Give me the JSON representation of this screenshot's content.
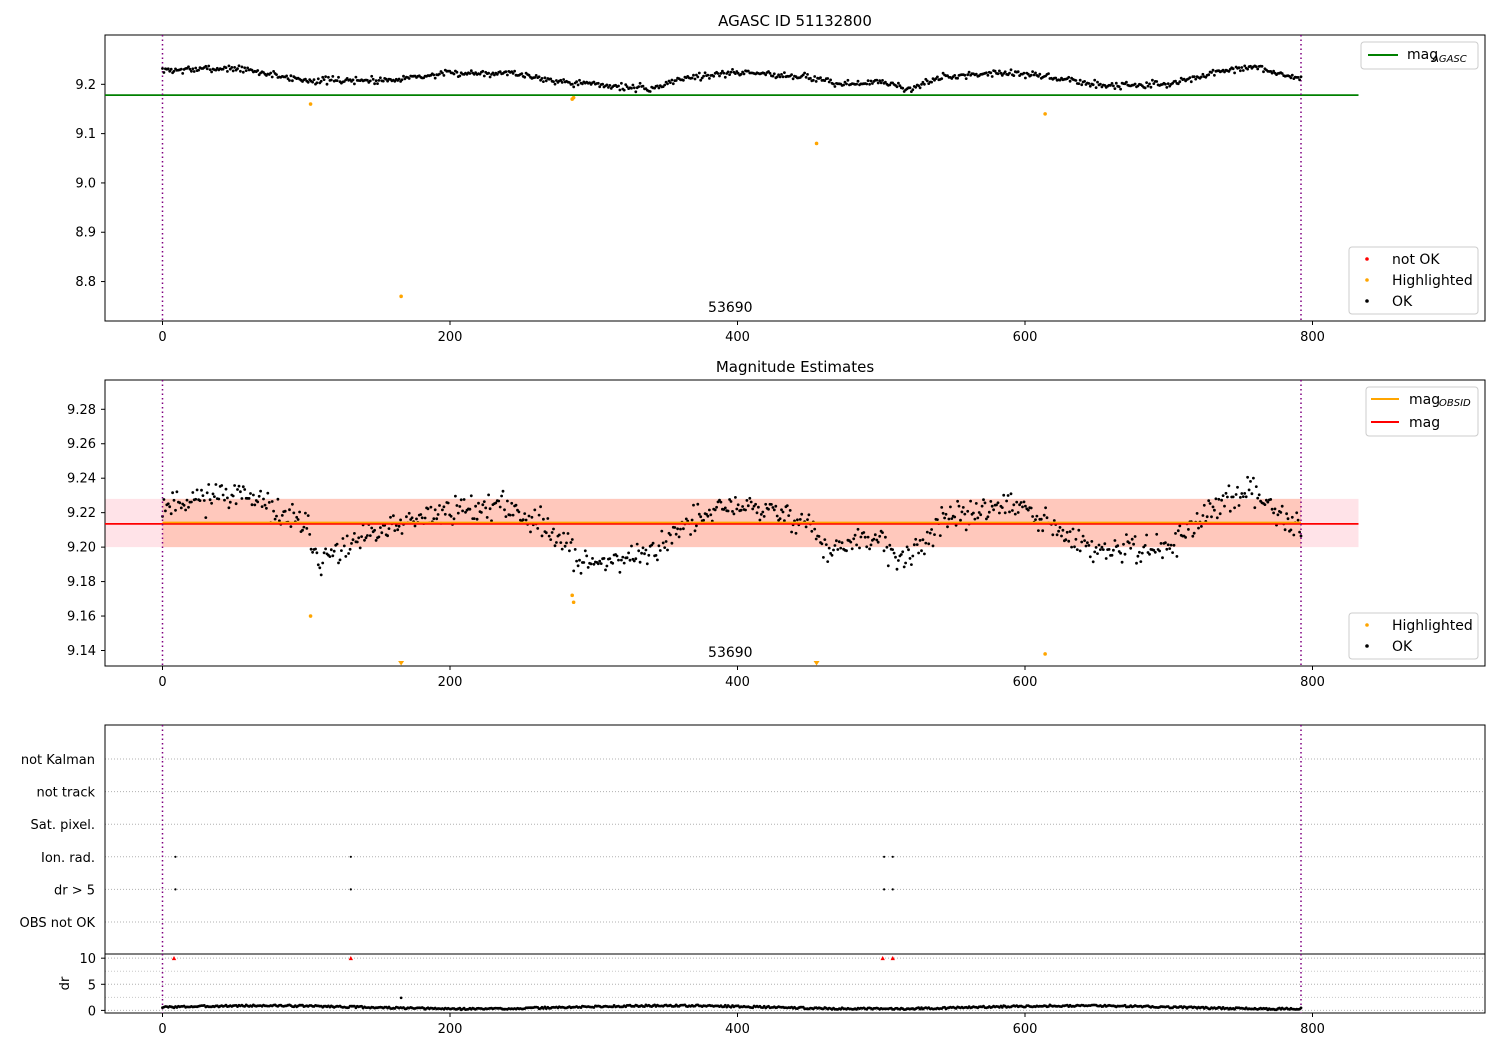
{
  "chart_data": [
    {
      "id": "top",
      "type": "scatter",
      "title": "AGASC ID 51132800",
      "xlim": [
        -40,
        920
      ],
      "ylim": [
        8.72,
        9.3
      ],
      "xticks": [
        0,
        200,
        400,
        600,
        800
      ],
      "yticks": [
        8.8,
        8.9,
        9.0,
        9.1,
        9.2
      ],
      "vlines": [
        0,
        792
      ],
      "hline": {
        "value": 9.178,
        "x_range": [
          -40,
          832
        ],
        "color": "#008000"
      },
      "annotation": {
        "text": "53690",
        "x": 395
      },
      "legend_lines": [
        {
          "label": "mag",
          "sub": "AGASC",
          "color": "#008000"
        }
      ],
      "legend_points": [
        {
          "label": "not OK",
          "color": "#ff0000"
        },
        {
          "label": "Highlighted",
          "color": "#ffa500"
        },
        {
          "label": "OK",
          "color": "#000000"
        }
      ],
      "highlighted": [
        [
          103,
          9.16
        ],
        [
          166,
          8.77
        ],
        [
          285,
          9.17
        ],
        [
          286,
          9.173
        ],
        [
          455,
          9.08
        ],
        [
          614,
          9.14
        ]
      ],
      "ok_profile": {
        "x_range": [
          0,
          792
        ],
        "n": 790,
        "knots": [
          [
            0,
            9.228
          ],
          [
            50,
            9.233
          ],
          [
            100,
            9.208
          ],
          [
            150,
            9.208
          ],
          [
            200,
            9.222
          ],
          [
            240,
            9.224
          ],
          [
            280,
            9.205
          ],
          [
            300,
            9.2
          ],
          [
            340,
            9.19
          ],
          [
            360,
            9.212
          ],
          [
            400,
            9.225
          ],
          [
            450,
            9.215
          ],
          [
            470,
            9.2
          ],
          [
            500,
            9.205
          ],
          [
            520,
            9.19
          ],
          [
            540,
            9.213
          ],
          [
            580,
            9.225
          ],
          [
            600,
            9.22
          ],
          [
            630,
            9.21
          ],
          [
            650,
            9.198
          ],
          [
            700,
            9.2
          ],
          [
            730,
            9.222
          ],
          [
            760,
            9.235
          ],
          [
            792,
            9.21
          ]
        ],
        "noise": 0.007,
        "seed": 7
      }
    },
    {
      "id": "mid",
      "type": "scatter",
      "title": "Magnitude Estimates",
      "xlim": [
        -40,
        920
      ],
      "ylim": [
        9.131,
        9.297
      ],
      "xticks": [
        0,
        200,
        400,
        600,
        800
      ],
      "yticks": [
        9.14,
        9.16,
        9.18,
        9.2,
        9.22,
        9.24,
        9.26,
        9.28
      ],
      "vlines": [
        0,
        792
      ],
      "band": {
        "lo": 9.2,
        "hi": 9.228,
        "x_range": [
          -40,
          832
        ]
      },
      "mag_line": {
        "value": 9.2135,
        "color": "#ff0000"
      },
      "obsid_line": {
        "value": 9.214,
        "color": "#ffa500"
      },
      "annotation": {
        "text": "53690",
        "x": 395
      },
      "legend_lines": [
        {
          "label": "mag",
          "sub": "OBSID",
          "color": "#ffa500"
        },
        {
          "label": "mag",
          "sub": "",
          "color": "#ff0000"
        }
      ],
      "legend_points": [
        {
          "label": "Highlighted",
          "color": "#ffa500"
        },
        {
          "label": "OK",
          "color": "#000000"
        }
      ],
      "highlighted": [
        [
          103,
          9.16
        ],
        [
          285,
          9.172
        ],
        [
          286,
          9.168
        ],
        [
          614,
          9.138
        ]
      ],
      "offscale": [
        166,
        455
      ],
      "ok_profile": {
        "x_range": [
          0,
          792
        ],
        "n": 790,
        "knots": [
          [
            0,
            9.225
          ],
          [
            50,
            9.232
          ],
          [
            100,
            9.212
          ],
          [
            110,
            9.192
          ],
          [
            150,
            9.208
          ],
          [
            200,
            9.222
          ],
          [
            240,
            9.224
          ],
          [
            280,
            9.205
          ],
          [
            290,
            9.19
          ],
          [
            340,
            9.196
          ],
          [
            360,
            9.212
          ],
          [
            400,
            9.225
          ],
          [
            450,
            9.215
          ],
          [
            460,
            9.198
          ],
          [
            500,
            9.205
          ],
          [
            515,
            9.19
          ],
          [
            540,
            9.213
          ],
          [
            580,
            9.225
          ],
          [
            600,
            9.222
          ],
          [
            630,
            9.205
          ],
          [
            650,
            9.198
          ],
          [
            700,
            9.2
          ],
          [
            730,
            9.222
          ],
          [
            760,
            9.233
          ],
          [
            792,
            9.21
          ]
        ],
        "noise": 0.008,
        "seed": 11
      }
    },
    {
      "id": "flags",
      "type": "scatter",
      "xlim": [
        -40,
        920
      ],
      "vlines": [
        0,
        792
      ],
      "rows": [
        "not Kalman",
        "not track",
        "Sat. pixel.",
        "Ion. rad.",
        "dr > 5",
        "OBS not OK"
      ],
      "flag_points": [
        {
          "row": "Ion. rad.",
          "x": [
            9,
            131,
            502,
            508
          ]
        },
        {
          "row": "dr > 5",
          "x": [
            9,
            131,
            502,
            508
          ]
        }
      ]
    },
    {
      "id": "dr",
      "type": "scatter",
      "ylabel": "dr",
      "xlim": [
        -40,
        920
      ],
      "ylim": [
        -0.5,
        10.8
      ],
      "yticks": [
        0,
        5,
        10
      ],
      "xticks": [
        0,
        200,
        400,
        600,
        800
      ],
      "vlines": [
        0,
        792
      ],
      "markers_at_10": [
        8,
        131,
        501,
        508
      ],
      "outlier": [
        166,
        2.4
      ],
      "dr_profile": {
        "x_range": [
          0,
          792
        ],
        "n": 790,
        "base": 0.6,
        "amp": 0.3,
        "seed": 3
      }
    }
  ]
}
